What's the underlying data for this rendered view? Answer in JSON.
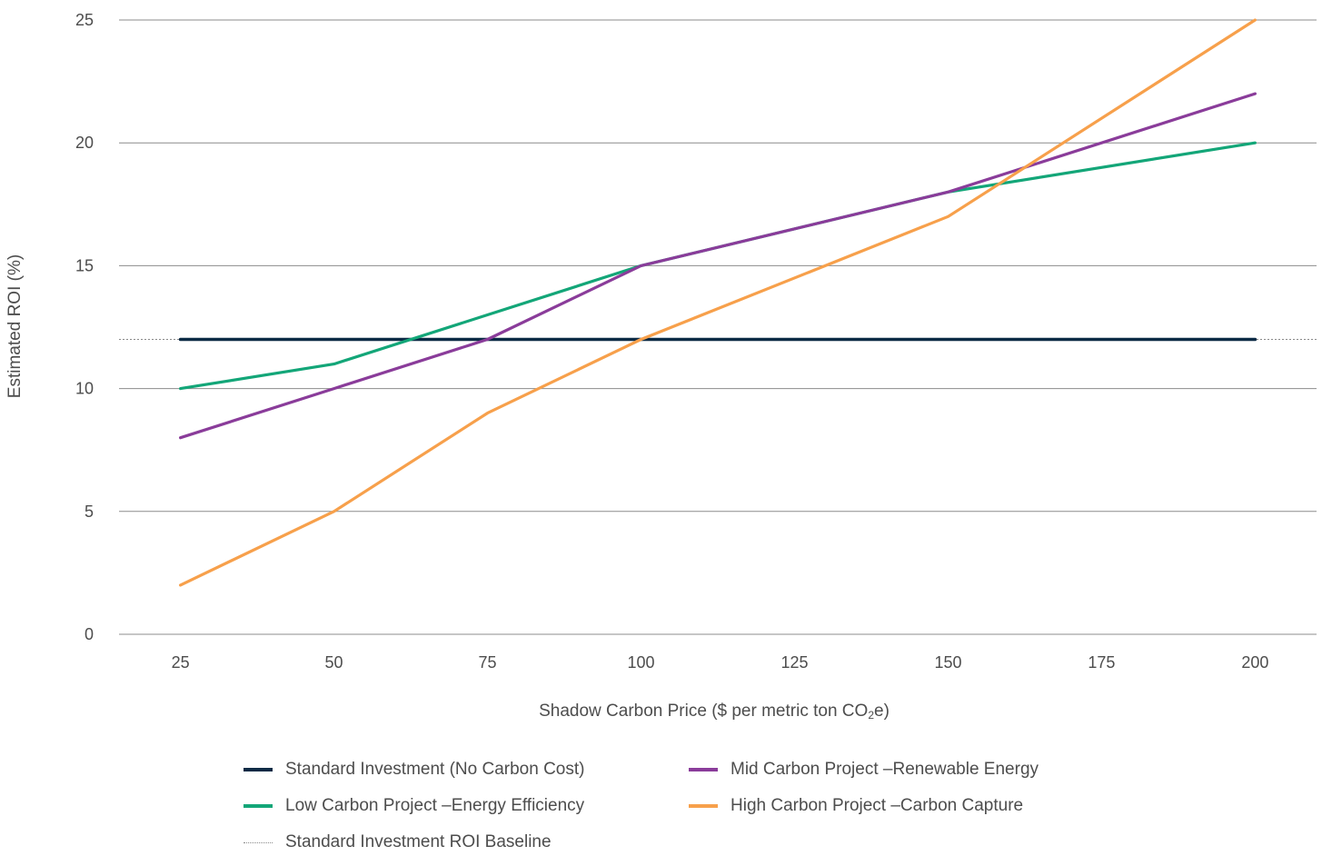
{
  "chart_data": {
    "type": "line",
    "title": "",
    "xlabel": "Shadow Carbon Price ($ per metric ton CO",
    "xlabel_sub": "2",
    "xlabel_suffix": "e)",
    "ylabel": "Estimated ROI (%)",
    "x": [
      25,
      50,
      75,
      100,
      125,
      150,
      175,
      200
    ],
    "xticks": [
      "25",
      "50",
      "75",
      "100",
      "125",
      "150",
      "175",
      "200"
    ],
    "yticks": [
      "0",
      "5",
      "10",
      "15",
      "20",
      "25"
    ],
    "xlim": [
      15,
      210
    ],
    "ylim": [
      0,
      25
    ],
    "grid": "horizontal",
    "legend_position": "bottom",
    "series": [
      {
        "name": "Standard Investment (No Carbon Cost)",
        "color": "#0b2a45",
        "style": "solid",
        "x": [
          25,
          200
        ],
        "values": [
          12,
          12
        ]
      },
      {
        "name": "Low Carbon Project –Energy Efficiency",
        "color": "#13a678",
        "style": "solid",
        "x": [
          25,
          50,
          75,
          100,
          150,
          200
        ],
        "values": [
          10,
          11,
          13,
          15,
          18,
          20
        ]
      },
      {
        "name": "Mid Carbon Project –Renewable Energy",
        "color": "#8a3c9a",
        "style": "solid",
        "x": [
          25,
          50,
          75,
          100,
          150,
          200
        ],
        "values": [
          8,
          10,
          12,
          15,
          18,
          22
        ]
      },
      {
        "name": "High Carbon Project –Carbon Capture",
        "color": "#f7a04b",
        "style": "solid",
        "x": [
          25,
          50,
          75,
          100,
          150,
          200
        ],
        "values": [
          2,
          5,
          9,
          12,
          17,
          25
        ]
      }
    ],
    "baseline": {
      "name": "Standard Investment ROI Baseline",
      "value": 12,
      "color": "#8a8a8a",
      "style": "dotted"
    }
  }
}
